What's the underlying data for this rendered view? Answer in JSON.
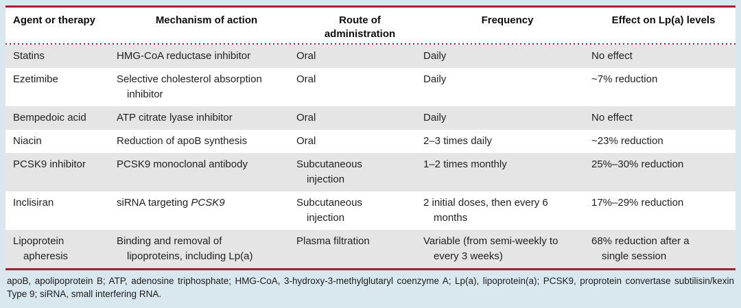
{
  "colors": {
    "accent_red": "#a31e35",
    "row_stripe": "#e5e5e5",
    "page_background": "#d8e8ee",
    "table_background": "#ffffff",
    "text": "#1f1f1f"
  },
  "table": {
    "headers": [
      "Agent or therapy",
      "Mechanism of action",
      "Route of administration",
      "Frequency",
      "Effect on Lp(a) levels"
    ],
    "rows": [
      {
        "agent": "Statins",
        "mechanism": "HMG-CoA reductase inhibitor",
        "route": "Oral",
        "frequency": "Daily",
        "effect": "No effect"
      },
      {
        "agent": "Ezetimibe",
        "mechanism": "Selective cholesterol absorption inhibitor",
        "route": "Oral",
        "frequency": "Daily",
        "effect": "~7% reduction"
      },
      {
        "agent": "Bempedoic acid",
        "mechanism": "ATP citrate lyase inhibitor",
        "route": "Oral",
        "frequency": "Daily",
        "effect": "No effect"
      },
      {
        "agent": "Niacin",
        "mechanism": "Reduction of apoB synthesis",
        "route": "Oral",
        "frequency": "2–3 times daily",
        "effect": "~23% reduction"
      },
      {
        "agent": "PCSK9 inhibitor",
        "mechanism": "PCSK9 monoclonal antibody",
        "route": "Subcutaneous injection",
        "frequency": "1–2 times monthly",
        "effect": "25%–30% reduction"
      },
      {
        "agent": "Inclisiran",
        "mechanism": "siRNA targeting ",
        "mechanism_italic": "PCSK9",
        "route": "Subcutaneous injection",
        "frequency": "2 initial doses, then every 6 months",
        "effect": "17%–29% reduction"
      },
      {
        "agent": "Lipoprotein apheresis",
        "mechanism": "Binding and removal of lipoproteins, including Lp(a)",
        "route": "Plasma filtration",
        "frequency": "Variable (from semi-weekly to every 3 weeks)",
        "effect": "68% reduction after a single session"
      }
    ]
  },
  "footnote": "apoB, apolipoprotein B; ATP, adenosine triphosphate; HMG-CoA, 3-hydroxy-3-methylglutaryl coenzyme A; Lp(a), lipoprotein(a); PCSK9, proprotein convertase subtilisin/kexin Type 9; siRNA, small interfering RNA."
}
